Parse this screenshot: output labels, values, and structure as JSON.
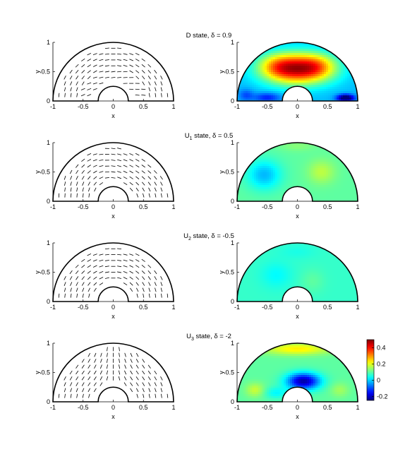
{
  "chart_data": {
    "type": "figure-grid",
    "colorbar": {
      "min": -0.25,
      "max": 0.5,
      "ticks": [
        "0.4",
        "0.2",
        "0",
        "-0.2"
      ],
      "tick_values": [
        0.4,
        0.2,
        0,
        -0.2
      ],
      "colormap": "jet"
    },
    "axes": {
      "xlabel": "x",
      "ylabel": "y",
      "xlim": [
        -1,
        1
      ],
      "ylim": [
        0,
        1
      ],
      "xticks": [
        "-1",
        "-0.5",
        "0",
        "0.5",
        "1"
      ],
      "xtick_values": [
        -1,
        -0.5,
        0,
        0.5,
        1
      ],
      "yticks": [
        "0",
        "0.5",
        "1"
      ],
      "ytick_values": [
        0,
        0.5,
        1
      ]
    },
    "geometry": {
      "outer_radius": 1.0,
      "inner_radius": 0.25
    },
    "rows": [
      {
        "title_main": "D state, δ = 0.9",
        "title_sub": "",
        "title_rest": "",
        "plot_left": "director field",
        "plot_right": "order-parameter map",
        "director_model": "D",
        "field": {
          "base": -0.02,
          "blobs": [
            {
              "x": 0.0,
              "y": 0.55,
              "amp": 0.46,
              "sx": 0.55,
              "sy": 0.26
            },
            {
              "x": -0.35,
              "y": 0.6,
              "amp": 0.1,
              "sx": 0.3,
              "sy": 0.2
            },
            {
              "x": 0.35,
              "y": 0.6,
              "amp": 0.1,
              "sx": 0.3,
              "sy": 0.2
            },
            {
              "x": -0.5,
              "y": 0.06,
              "amp": -0.12,
              "sx": 0.22,
              "sy": 0.08
            },
            {
              "x": 0.8,
              "y": 0.05,
              "amp": -0.3,
              "sx": 0.14,
              "sy": 0.06
            },
            {
              "x": -0.85,
              "y": 0.1,
              "amp": -0.08,
              "sx": 0.12,
              "sy": 0.1
            }
          ]
        }
      },
      {
        "title_main": "U",
        "title_sub": "1",
        "title_rest": " state, δ = 0.5",
        "plot_left": "director field",
        "plot_right": "order-parameter map",
        "director_model": "U1",
        "field": {
          "base": 0.1,
          "blobs": [
            {
              "x": -0.55,
              "y": 0.45,
              "amp": -0.12,
              "sx": 0.28,
              "sy": 0.25
            },
            {
              "x": 0.4,
              "y": 0.5,
              "amp": 0.07,
              "sx": 0.22,
              "sy": 0.2
            },
            {
              "x": 0.0,
              "y": 0.95,
              "amp": 0.03,
              "sx": 0.3,
              "sy": 0.1
            }
          ]
        }
      },
      {
        "title_main": "U",
        "title_sub": "2",
        "title_rest": " state, δ = -0.5",
        "plot_left": "director field",
        "plot_right": "order-parameter map",
        "director_model": "U2",
        "field": {
          "base": 0.07,
          "blobs": [
            {
              "x": -0.35,
              "y": 0.45,
              "amp": -0.04,
              "sx": 0.25,
              "sy": 0.22
            },
            {
              "x": 0.25,
              "y": 0.35,
              "amp": 0.03,
              "sx": 0.2,
              "sy": 0.2
            },
            {
              "x": 0.0,
              "y": 0.85,
              "amp": -0.02,
              "sx": 0.3,
              "sy": 0.12
            }
          ]
        }
      },
      {
        "title_main": "U",
        "title_sub": "3",
        "title_rest": " state, δ = -2",
        "plot_left": "director field",
        "plot_right": "order-parameter map",
        "director_model": "U3",
        "field": {
          "base": 0.1,
          "blobs": [
            {
              "x": 0.0,
              "y": 0.9,
              "amp": 0.13,
              "sx": 0.55,
              "sy": 0.1
            },
            {
              "x": 0.1,
              "y": 0.35,
              "amp": -0.32,
              "sx": 0.27,
              "sy": 0.14
            },
            {
              "x": -0.35,
              "y": 0.15,
              "amp": -0.07,
              "sx": 0.2,
              "sy": 0.1
            },
            {
              "x": -0.7,
              "y": 0.2,
              "amp": 0.08,
              "sx": 0.15,
              "sy": 0.12
            },
            {
              "x": 0.7,
              "y": 0.2,
              "amp": 0.05,
              "sx": 0.15,
              "sy": 0.12
            }
          ]
        }
      }
    ]
  }
}
